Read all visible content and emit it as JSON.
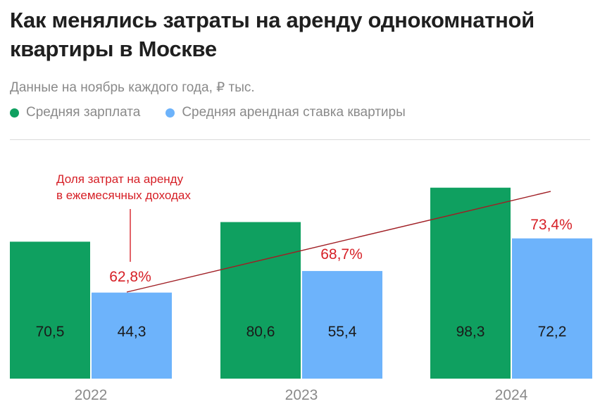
{
  "title": "Как менялись затраты на аренду однокомнатной квартиры в Москве",
  "subtitle": "Данные на ноябрь каждого года, ₽ тыс.",
  "colors": {
    "salary": "#0fa060",
    "rent": "#6db3fb",
    "line": "#a01e24",
    "accent": "#d61f26"
  },
  "chart_data": {
    "type": "bar",
    "categories": [
      "2022",
      "2023",
      "2024"
    ],
    "series": [
      {
        "name": "Средняя зарплата",
        "values": [
          70.5,
          80.6,
          98.3
        ],
        "labels": [
          "70,5",
          "80,6",
          "98,3"
        ]
      },
      {
        "name": "Средняя арендная ставка квартиры",
        "values": [
          44.3,
          55.4,
          72.2
        ],
        "labels": [
          "44,3",
          "55,4",
          "72,2"
        ]
      }
    ],
    "share_line": {
      "name": "Доля затрат на аренду в ежемесячных доходах",
      "values": [
        62.8,
        68.7,
        73.4
      ],
      "labels": [
        "62,8%",
        "68,7%",
        "73,4%"
      ]
    },
    "annotation": [
      "Доля затрат на аренду",
      "в ежемесячных доходах"
    ],
    "ylim": [
      0,
      110
    ]
  }
}
